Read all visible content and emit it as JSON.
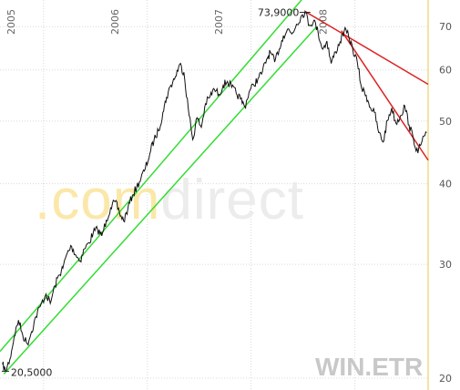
{
  "chart_data": {
    "type": "line",
    "ticker": "WIN.ETR",
    "y_scale": "log",
    "ylim": [
      20,
      75
    ],
    "y_ticks": [
      20,
      30,
      40,
      50,
      60,
      70
    ],
    "x_range": [
      "2004-08-01",
      "2008-09-15"
    ],
    "x_year_labels": [
      "2005",
      "2006",
      "2007",
      "2008"
    ],
    "annotations": [
      {
        "name": "low",
        "label": "20,5000",
        "date": "2004-08-20",
        "value": 20.5
      },
      {
        "name": "high",
        "label": "73,9000",
        "date": "2007-07-10",
        "value": 73.9
      }
    ],
    "series": [
      {
        "points": [
          [
            "2004-08-10",
            21.0
          ],
          [
            "2004-08-20",
            20.5
          ],
          [
            "2004-09-05",
            21.4
          ],
          [
            "2004-09-20",
            23.2
          ],
          [
            "2004-10-05",
            24.6
          ],
          [
            "2004-10-20",
            23.3
          ],
          [
            "2004-11-05",
            22.6
          ],
          [
            "2004-11-20",
            23.6
          ],
          [
            "2004-12-05",
            24.9
          ],
          [
            "2004-12-20",
            25.8
          ],
          [
            "2005-01-10",
            27.0
          ],
          [
            "2005-01-25",
            26.1
          ],
          [
            "2005-02-10",
            27.8
          ],
          [
            "2005-02-25",
            28.9
          ],
          [
            "2005-03-10",
            29.6
          ],
          [
            "2005-03-25",
            31.2
          ],
          [
            "2005-04-10",
            32.0
          ],
          [
            "2005-04-25",
            31.0
          ],
          [
            "2005-05-10",
            30.4
          ],
          [
            "2005-05-25",
            31.7
          ],
          [
            "2005-06-10",
            32.4
          ],
          [
            "2005-06-25",
            33.6
          ],
          [
            "2005-07-10",
            34.0
          ],
          [
            "2005-07-25",
            33.2
          ],
          [
            "2005-08-10",
            35.1
          ],
          [
            "2005-08-25",
            36.7
          ],
          [
            "2005-09-10",
            37.5
          ],
          [
            "2005-09-25",
            36.1
          ],
          [
            "2005-10-10",
            35.0
          ],
          [
            "2005-10-25",
            36.6
          ],
          [
            "2005-11-10",
            38.4
          ],
          [
            "2005-11-25",
            39.5
          ],
          [
            "2005-12-10",
            40.8
          ],
          [
            "2005-12-25",
            42.2
          ],
          [
            "2006-01-10",
            44.5
          ],
          [
            "2006-01-25",
            46.8
          ],
          [
            "2006-02-10",
            48.3
          ],
          [
            "2006-02-25",
            51.6
          ],
          [
            "2006-03-10",
            54.4
          ],
          [
            "2006-03-25",
            56.8
          ],
          [
            "2006-04-10",
            58.6
          ],
          [
            "2006-04-25",
            61.2
          ],
          [
            "2006-05-10",
            59.5
          ],
          [
            "2006-05-25",
            52.4
          ],
          [
            "2006-06-10",
            46.8
          ],
          [
            "2006-06-25",
            50.6
          ],
          [
            "2006-07-10",
            48.9
          ],
          [
            "2006-07-25",
            53.2
          ],
          [
            "2006-08-10",
            54.6
          ],
          [
            "2006-08-25",
            56.0
          ],
          [
            "2006-09-10",
            55.0
          ],
          [
            "2006-09-25",
            56.8
          ],
          [
            "2006-10-10",
            57.6
          ],
          [
            "2006-10-25",
            56.4
          ],
          [
            "2006-11-10",
            55.2
          ],
          [
            "2006-11-25",
            54.1
          ],
          [
            "2006-12-10",
            52.6
          ],
          [
            "2006-12-25",
            55.4
          ],
          [
            "2007-01-10",
            56.9
          ],
          [
            "2007-01-25",
            58.1
          ],
          [
            "2007-02-10",
            59.6
          ],
          [
            "2007-02-25",
            62.3
          ],
          [
            "2007-03-10",
            63.9
          ],
          [
            "2007-03-25",
            61.7
          ],
          [
            "2007-04-10",
            64.6
          ],
          [
            "2007-04-25",
            67.8
          ],
          [
            "2007-05-10",
            69.4
          ],
          [
            "2007-05-25",
            68.2
          ],
          [
            "2007-06-10",
            70.6
          ],
          [
            "2007-06-25",
            72.4
          ],
          [
            "2007-07-10",
            73.9
          ],
          [
            "2007-07-25",
            70.4
          ],
          [
            "2007-08-10",
            71.6
          ],
          [
            "2007-08-25",
            68.6
          ],
          [
            "2007-09-10",
            64.6
          ],
          [
            "2007-09-25",
            66.5
          ],
          [
            "2007-10-10",
            61.4
          ],
          [
            "2007-10-25",
            64.0
          ],
          [
            "2007-11-10",
            66.3
          ],
          [
            "2007-11-25",
            69.0
          ],
          [
            "2007-12-10",
            67.8
          ],
          [
            "2007-12-25",
            64.5
          ],
          [
            "2008-01-10",
            61.6
          ],
          [
            "2008-01-25",
            56.2
          ],
          [
            "2008-02-10",
            54.8
          ],
          [
            "2008-02-25",
            52.5
          ],
          [
            "2008-03-10",
            51.6
          ],
          [
            "2008-03-25",
            48.0
          ],
          [
            "2008-04-10",
            46.4
          ],
          [
            "2008-04-25",
            50.1
          ],
          [
            "2008-05-10",
            52.4
          ],
          [
            "2008-05-25",
            49.6
          ],
          [
            "2008-06-10",
            51.0
          ],
          [
            "2008-06-25",
            52.8
          ],
          [
            "2008-07-10",
            49.3
          ],
          [
            "2008-07-25",
            47.0
          ],
          [
            "2008-08-10",
            44.6
          ],
          [
            "2008-08-25",
            46.6
          ],
          [
            "2008-09-10",
            48.0
          ]
        ]
      }
    ],
    "trendlines": [
      {
        "name": "channel-upper",
        "color": "#33dd33",
        "from": [
          "2004-08-01",
          22.0
        ],
        "to": [
          "2007-08-20",
          82.0
        ]
      },
      {
        "name": "channel-lower",
        "color": "#33dd33",
        "from": [
          "2004-08-15",
          20.3
        ],
        "to": [
          "2007-08-20",
          70.0
        ]
      },
      {
        "name": "resistance-long",
        "color": "#dd2222",
        "from": [
          "2007-07-10",
          73.9
        ],
        "to": [
          "2008-09-15",
          57.0
        ]
      },
      {
        "name": "resistance-short",
        "color": "#dd2222",
        "from": [
          "2007-11-15",
          69.0
        ],
        "to": [
          "2008-09-15",
          43.5
        ]
      }
    ],
    "colors": {
      "price": "#111111",
      "right_axis": "#f3e3a2",
      "grid": "#d9d9d9"
    }
  },
  "watermark": ".comdirect"
}
